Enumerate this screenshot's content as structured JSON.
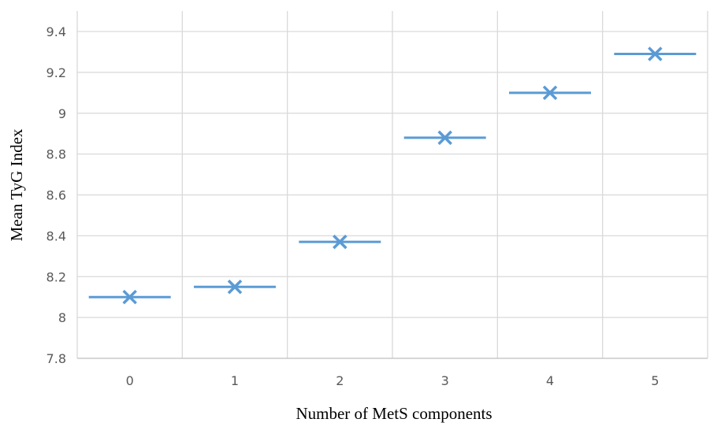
{
  "chart_data": {
    "type": "scatter",
    "categories": [
      "0",
      "1",
      "2",
      "3",
      "4",
      "5"
    ],
    "values": [
      8.1,
      8.15,
      8.37,
      8.88,
      9.1,
      9.29
    ],
    "xlabel": "Number of MetS components",
    "ylabel": "Mean TyG Index",
    "ylim": [
      7.8,
      9.4
    ],
    "yticks": [
      {
        "value": 7.8,
        "label": "7.8"
      },
      {
        "value": 8.0,
        "label": "8"
      },
      {
        "value": 8.2,
        "label": "8.2"
      },
      {
        "value": 8.4,
        "label": "8.4"
      },
      {
        "value": 8.6,
        "label": "8.6"
      },
      {
        "value": 8.8,
        "label": "8.8"
      },
      {
        "value": 9.0,
        "label": "9"
      },
      {
        "value": 9.2,
        "label": "9.2"
      },
      {
        "value": 9.4,
        "label": "9.4"
      }
    ],
    "marker": "x-with-horizontal-bar",
    "series_color": "#5b9bd5",
    "grid": true,
    "legend": "none"
  }
}
